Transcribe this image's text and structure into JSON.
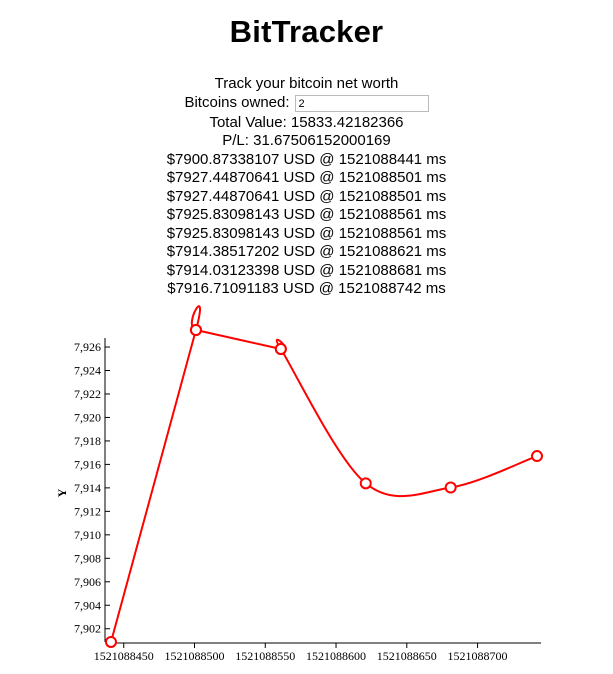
{
  "app": {
    "title": "BitTracker",
    "subtitle": "Track your bitcoin net worth"
  },
  "form": {
    "bitcoins_owned_label": "Bitcoins owned:",
    "bitcoins_owned_value": "2"
  },
  "summary": {
    "total_value": "Total Value: 15833.42182366",
    "pl": "P/L: 31.67506152000169"
  },
  "price_log": [
    "$7900.87338107 USD @ 1521088441 ms",
    "$7927.44870641 USD @ 1521088501 ms",
    "$7927.44870641 USD @ 1521088501 ms",
    "$7925.83098143 USD @ 1521088561 ms",
    "$7925.83098143 USD @ 1521088561 ms",
    "$7914.38517202 USD @ 1521088621 ms",
    "$7914.03123398 USD @ 1521088681 ms",
    "$7916.71091183 USD @ 1521088742 ms"
  ],
  "colors": {
    "line": "#ff0000",
    "axis": "#000000"
  },
  "chart_data": {
    "type": "line",
    "ylabel": "Y",
    "xlim": [
      1521088441,
      1521088742
    ],
    "ylim": [
      7900.87,
      7927.45
    ],
    "xticks": [
      1521088450,
      1521088500,
      1521088550,
      1521088600,
      1521088650,
      1521088700
    ],
    "yticks": [
      7902,
      7904,
      7906,
      7908,
      7910,
      7912,
      7914,
      7916,
      7918,
      7920,
      7922,
      7924,
      7926
    ],
    "series": [
      {
        "x": [
          1521088441,
          1521088501,
          1521088501,
          1521088561,
          1521088561,
          1521088621,
          1521088681,
          1521088742
        ],
        "values": [
          7900.87338107,
          7927.44870641,
          7927.44870641,
          7925.83098143,
          7925.83098143,
          7914.38517202,
          7914.03123398,
          7916.71091183
        ]
      }
    ]
  }
}
